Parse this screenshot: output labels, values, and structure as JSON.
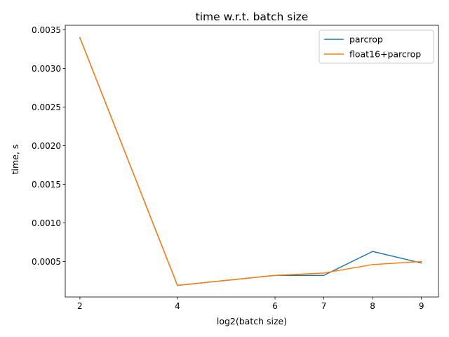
{
  "chart_data": {
    "type": "line",
    "title": "time w.r.t. batch size",
    "xlabel": "log2(batch size)",
    "ylabel": "time, s",
    "x": [
      2,
      4,
      6,
      7,
      8,
      9
    ],
    "xticks": [
      "2",
      "4",
      "6",
      "7",
      "8",
      "9"
    ],
    "yticks": [
      "0.0005",
      "0.0010",
      "0.0015",
      "0.0020",
      "0.0025",
      "0.0030",
      "0.0035"
    ],
    "ytick_values": [
      0.0005,
      0.001,
      0.0015,
      0.002,
      0.0025,
      0.003,
      0.0035
    ],
    "xlim": [
      1.7,
      9.35
    ],
    "ylim": [
      4e-05,
      0.00356
    ],
    "grid": false,
    "legend_position": "top-right",
    "series": [
      {
        "name": "parcrop",
        "color": "#1f77b4",
        "values": [
          0.0034,
          0.00019,
          0.00032,
          0.00032,
          0.00063,
          0.00048
        ]
      },
      {
        "name": "float16+parcrop",
        "color": "#ff7f0e",
        "values": [
          0.0034,
          0.00019,
          0.00032,
          0.00035,
          0.00046,
          0.0005
        ]
      }
    ]
  }
}
